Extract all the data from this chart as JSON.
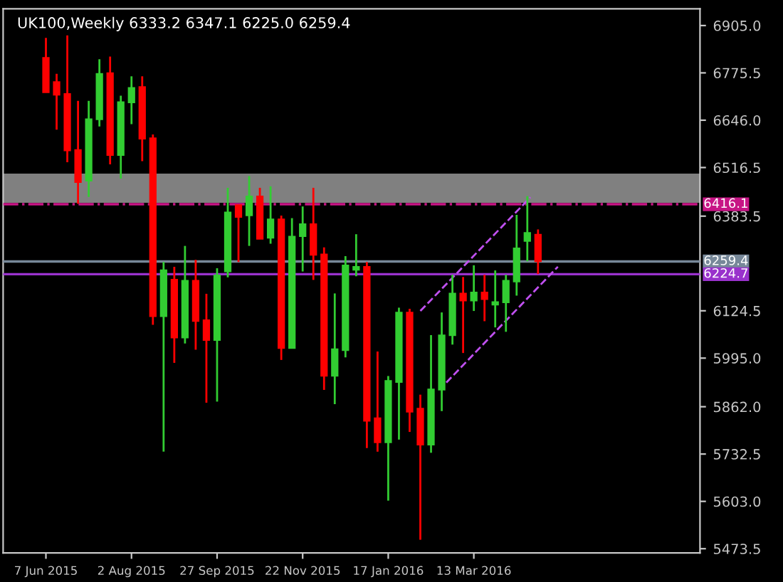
{
  "chart_data": {
    "type": "candlestick",
    "title": "UK100,Weekly 6333.2 6347.1 6225.0 6259.4",
    "x": [
      "2015-06-07",
      "2015-06-14",
      "2015-06-21",
      "2015-06-28",
      "2015-07-05",
      "2015-07-12",
      "2015-07-19",
      "2015-07-26",
      "2015-08-02",
      "2015-08-09",
      "2015-08-16",
      "2015-08-23",
      "2015-08-30",
      "2015-09-06",
      "2015-09-13",
      "2015-09-20",
      "2015-09-27",
      "2015-10-04",
      "2015-10-11",
      "2015-10-18",
      "2015-10-25",
      "2015-11-01",
      "2015-11-08",
      "2015-11-15",
      "2015-11-22",
      "2015-11-29",
      "2015-12-06",
      "2015-12-13",
      "2015-12-20",
      "2015-12-27",
      "2016-01-03",
      "2016-01-10",
      "2016-01-17",
      "2016-01-24",
      "2016-01-31",
      "2016-02-07",
      "2016-02-14",
      "2016-02-21",
      "2016-02-28",
      "2016-03-06",
      "2016-03-13",
      "2016-03-20",
      "2016-03-27",
      "2016-04-03",
      "2016-04-10",
      "2016-04-17",
      "2016-04-24"
    ],
    "ohlc": [
      [
        6817,
        6871,
        6722,
        6722
      ],
      [
        6751,
        6773,
        6620,
        6715
      ],
      [
        6718,
        6878,
        6531,
        6563
      ],
      [
        6565,
        6699,
        6417,
        6476
      ],
      [
        6480,
        6699,
        6436,
        6649
      ],
      [
        6648,
        6813,
        6629,
        6773
      ],
      [
        6775,
        6820,
        6525,
        6550
      ],
      [
        6550,
        6713,
        6486,
        6696
      ],
      [
        6694,
        6766,
        6635,
        6735
      ],
      [
        6737,
        6766,
        6534,
        6595
      ],
      [
        6597,
        6607,
        6086,
        6109
      ],
      [
        6109,
        6258,
        5739,
        6236
      ],
      [
        6210,
        6245,
        5982,
        6051
      ],
      [
        6051,
        6302,
        6035,
        6207
      ],
      [
        6207,
        6264,
        6018,
        6096
      ],
      [
        6099,
        6171,
        5873,
        6044
      ],
      [
        6044,
        6241,
        5876,
        6222
      ],
      [
        6232,
        6461,
        6216,
        6394
      ],
      [
        6414,
        6414,
        6258,
        6381
      ],
      [
        6385,
        6493,
        6302,
        6438
      ],
      [
        6438,
        6461,
        6321,
        6321
      ],
      [
        6324,
        6465,
        6308,
        6375
      ],
      [
        6375,
        6385,
        5990,
        6022
      ],
      [
        6022,
        6378,
        6022,
        6328
      ],
      [
        6328,
        6410,
        6232,
        6362
      ],
      [
        6362,
        6461,
        6209,
        6277
      ],
      [
        6279,
        6298,
        5908,
        5946
      ],
      [
        5946,
        6172,
        5869,
        6020
      ],
      [
        6016,
        6274,
        5997,
        6249
      ],
      [
        6236,
        6334,
        6219,
        6245
      ],
      [
        6245,
        6258,
        5749,
        5823
      ],
      [
        5831,
        6013,
        5739,
        5764
      ],
      [
        5764,
        5946,
        5605,
        5933
      ],
      [
        5929,
        6133,
        5772,
        6120
      ],
      [
        6120,
        6130,
        5793,
        5848
      ],
      [
        5857,
        5895,
        5498,
        5758
      ],
      [
        5758,
        6058,
        5736,
        5910
      ],
      [
        5908,
        6120,
        5850,
        6058
      ],
      [
        6057,
        6223,
        6032,
        6172
      ],
      [
        6172,
        6217,
        6009,
        6152
      ],
      [
        6152,
        6249,
        6124,
        6175
      ],
      [
        6175,
        6223,
        6096,
        6156
      ],
      [
        6141,
        6235,
        6079,
        6149
      ],
      [
        6147,
        6223,
        6067,
        6207
      ],
      [
        6204,
        6387,
        6166,
        6296
      ],
      [
        6315,
        6438,
        6260,
        6338
      ],
      [
        6333.2,
        6347.1,
        6225.0,
        6259.4
      ]
    ],
    "colors": [
      "#ff0000",
      "#ff0000",
      "#ff0000",
      "#ff0000",
      "#32cd32",
      "#32cd32",
      "#ff0000",
      "#32cd32",
      "#32cd32",
      "#ff0000",
      "#ff0000",
      "#32cd32",
      "#ff0000",
      "#32cd32",
      "#ff0000",
      "#ff0000",
      "#32cd32",
      "#32cd32",
      "#ff0000",
      "#32cd32",
      "#ff0000",
      "#32cd32",
      "#ff0000",
      "#32cd32",
      "#32cd32",
      "#ff0000",
      "#ff0000",
      "#32cd32",
      "#32cd32",
      "#32cd32",
      "#ff0000",
      "#ff0000",
      "#32cd32",
      "#32cd32",
      "#ff0000",
      "#ff0000",
      "#32cd32",
      "#32cd32",
      "#32cd32",
      "#ff0000",
      "#32cd32",
      "#ff0000",
      "#32cd32",
      "#32cd32",
      "#32cd32",
      "#32cd32",
      "#ff0000"
    ],
    "series": [
      {
        "type": "line",
        "color": "#c050f0",
        "line_style": "dashed",
        "x": [
          "2016-02-07",
          "2016-04-19"
        ],
        "values": [
          6124,
          6435
        ]
      },
      {
        "type": "line",
        "color": "#c050f0",
        "line_style": "dashed",
        "x": [
          "2016-02-24",
          "2016-05-07"
        ],
        "values": [
          5928,
          6245
        ]
      }
    ],
    "bands": [
      {
        "axis": "y",
        "from": 6420,
        "to": 6500,
        "color": "#808080"
      }
    ],
    "ref_lines": [
      {
        "axis": "y",
        "value": 6416.1,
        "label": "6416.1",
        "color": "#c71585",
        "line_style": "dashdot"
      },
      {
        "axis": "y",
        "value": 6259.4,
        "label": "6259.4",
        "color": "#778899",
        "line_style": "solid"
      },
      {
        "axis": "y",
        "value": 6224.7,
        "label": "6224.7",
        "color": "#9932cc",
        "line_style": "solid"
      }
    ],
    "xlim": [
      "2015-05-10",
      "2016-08-08"
    ],
    "xticks": [
      {
        "value": "2015-06-07",
        "label": "7 Jun 2015"
      },
      {
        "value": "2015-08-02",
        "label": "2 Aug 2015"
      },
      {
        "value": "2015-09-27",
        "label": "27 Sep 2015"
      },
      {
        "value": "2015-11-22",
        "label": "22 Nov 2015"
      },
      {
        "value": "2016-01-17",
        "label": "17 Jan 2016"
      },
      {
        "value": "2016-03-13",
        "label": "13 Mar 2016"
      }
    ],
    "ylim": [
      5462,
      6951
    ],
    "yticks": [
      {
        "value": 6905,
        "label": "6905.0"
      },
      {
        "value": 6775.5,
        "label": "6775.5"
      },
      {
        "value": 6646,
        "label": "6646.0"
      },
      {
        "value": 6516.5,
        "label": "6516.5"
      },
      {
        "value": 6383.5,
        "label": "6383.5"
      },
      {
        "value": 6124.5,
        "label": "6124.5"
      },
      {
        "value": 5995,
        "label": "5995.0"
      },
      {
        "value": 5862,
        "label": "5862.0"
      },
      {
        "value": 5732.5,
        "label": "5732.5"
      },
      {
        "value": 5603,
        "label": "5603.0"
      },
      {
        "value": 5473.5,
        "label": "5473.5"
      }
    ],
    "grid": false,
    "legend": false
  }
}
